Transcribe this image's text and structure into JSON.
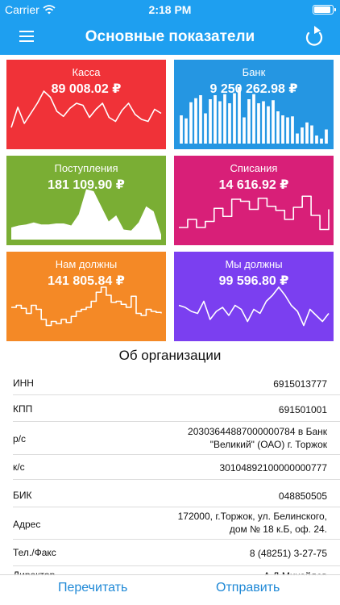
{
  "status_bar": {
    "carrier": "Carrier",
    "time": "2:18 PM"
  },
  "header": {
    "title": "Основные показатели"
  },
  "tiles": [
    {
      "label": "Касса",
      "value": "89 008.02 ₽",
      "color": "#f03238",
      "chart": "line",
      "series": [
        16,
        36,
        20,
        30,
        40,
        52,
        46,
        32,
        27,
        35,
        40,
        38,
        26,
        34,
        40,
        26,
        22,
        33,
        40,
        29,
        24,
        22,
        34,
        30
      ]
    },
    {
      "label": "Банк",
      "value": "9 250 262.98 ₽",
      "color": "#2596e2",
      "chart": "bars",
      "series": [
        28,
        25,
        41,
        45,
        48,
        30,
        44,
        48,
        42,
        49,
        40,
        50,
        56,
        26,
        44,
        49,
        40,
        42,
        37,
        43,
        32,
        28,
        26,
        27,
        10,
        16,
        21,
        18,
        8,
        5,
        14
      ]
    },
    {
      "label": "Поступления",
      "value": "181 109.90 ₽",
      "color": "#7aae34",
      "chart": "area",
      "series": [
        12,
        14,
        15,
        17,
        15,
        15,
        16,
        16,
        14,
        25,
        50,
        48,
        33,
        18,
        24,
        10,
        9,
        17,
        33,
        28,
        5
      ]
    },
    {
      "label": "Списания",
      "value": "14 616.92 ₽",
      "color": "#d81f78",
      "chart": "step",
      "series": [
        12,
        20,
        12,
        18,
        31,
        23,
        40,
        38,
        30,
        41,
        33,
        29,
        20,
        32,
        43,
        24,
        10,
        30
      ]
    },
    {
      "label": "Нам должны",
      "value": "141 805.84 ₽",
      "color": "#f48926",
      "chart": "step",
      "series": [
        28,
        30,
        27,
        22,
        30,
        26,
        16,
        10,
        14,
        12,
        16,
        13,
        19,
        24,
        26,
        28,
        34,
        43,
        48,
        40,
        33,
        34,
        31,
        28,
        39,
        22,
        20,
        26,
        24,
        23,
        22
      ]
    },
    {
      "label": "Мы должны",
      "value": "99 596.80 ₽",
      "color": "#7b3ff0",
      "chart": "line",
      "series": [
        30,
        28,
        24,
        22,
        34,
        16,
        24,
        28,
        20,
        30,
        26,
        14,
        26,
        22,
        34,
        40,
        48,
        40,
        30,
        24,
        10,
        26,
        20,
        14,
        22
      ]
    }
  ],
  "org": {
    "title": "Об организации",
    "rows": [
      {
        "key": "ИНН",
        "value": "6915013777"
      },
      {
        "key": "КПП",
        "value": "691501001"
      },
      {
        "key": "р/с",
        "value": "20303644887000000784 в Банк\n\"Великий\" (ОАО) г. Торжок"
      },
      {
        "key": "к/с",
        "value": "30104892100000000777"
      },
      {
        "key": "БИК",
        "value": "048850505"
      },
      {
        "key": "Адрес",
        "value": "172000, г.Торжок, ул. Белинского,\nдом № 18 к.Б, оф. 24."
      },
      {
        "key": "Тел./Факс",
        "value": "8 (48251) 3-27-75"
      },
      {
        "key": "Директор",
        "value": "А.Д.Михайлов"
      }
    ]
  },
  "toolbar": {
    "reload_label": "Перечитать",
    "send_label": "Отправить"
  }
}
